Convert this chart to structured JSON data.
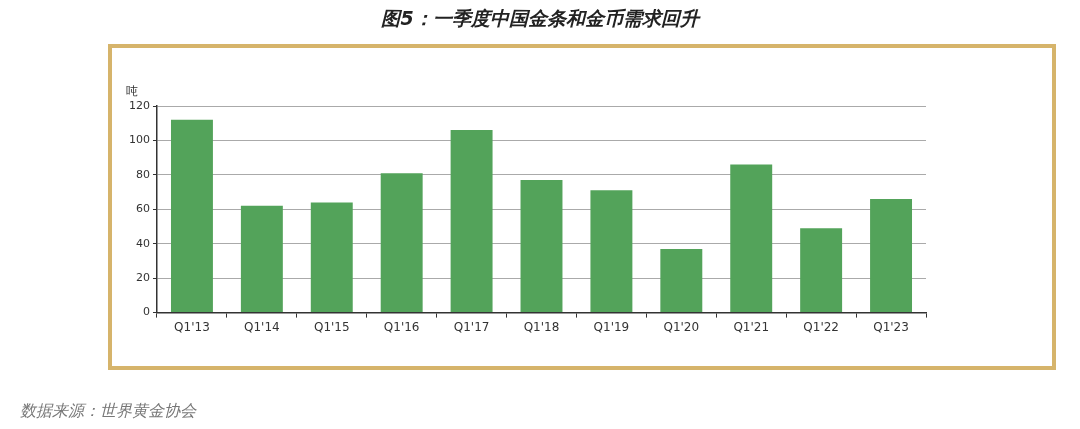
{
  "chart_data": {
    "type": "bar",
    "title": "图5：一季度中国金条和金币需求回升",
    "ylabel": "吨",
    "categories": [
      "Q1'13",
      "Q1'14",
      "Q1'15",
      "Q1'16",
      "Q1'17",
      "Q1'18",
      "Q1'19",
      "Q1'20",
      "Q1'21",
      "Q1'22",
      "Q1'23"
    ],
    "values": [
      112,
      62,
      64,
      81,
      106,
      77,
      71,
      37,
      86,
      49,
      66
    ],
    "color": "#53a35a",
    "ylim": [
      0,
      120
    ],
    "yticks": [
      0,
      20,
      40,
      60,
      80,
      100,
      120
    ],
    "grid": "y",
    "legend": false,
    "annotations": [
      "数据来源：世界黄金协会"
    ]
  }
}
